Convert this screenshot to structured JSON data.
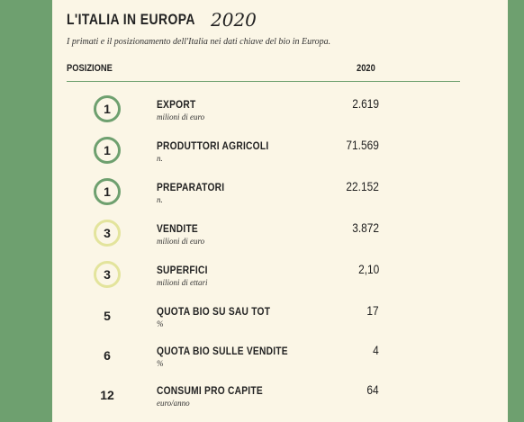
{
  "header": {
    "title": "L'ITALIA IN EUROPA",
    "year": "2020",
    "subtitle": "I primati e il posizionamento dell'Italia nei dati chiave del bio in Europa."
  },
  "columns": {
    "position": "POSIZIONE",
    "year": "2020"
  },
  "rows": [
    {
      "rank": "1",
      "label": "EXPORT",
      "unit": "milioni di euro",
      "value": "2.619",
      "ring": "green"
    },
    {
      "rank": "1",
      "label": "PRODUTTORI AGRICOLI",
      "unit": "n.",
      "value": "71.569",
      "ring": "green"
    },
    {
      "rank": "1",
      "label": "PREPARATORI",
      "unit": "n.",
      "value": "22.152",
      "ring": "green"
    },
    {
      "rank": "3",
      "label": "VENDITE",
      "unit": "milioni di euro",
      "value": "3.872",
      "ring": "yellow"
    },
    {
      "rank": "3",
      "label": "SUPERFICI",
      "unit": "milioni di ettari",
      "value": "2,10",
      "ring": "yellow"
    },
    {
      "rank": "5",
      "label": "QUOTA BIO SU SAU TOT",
      "unit": "%",
      "value": "17",
      "ring": "none"
    },
    {
      "rank": "6",
      "label": "QUOTA BIO SULLE VENDITE",
      "unit": "%",
      "value": "4",
      "ring": "none"
    },
    {
      "rank": "12",
      "label": "CONSUMI PRO CAPITE",
      "unit": "euro/anno",
      "value": "64",
      "ring": "none"
    }
  ],
  "colors": {
    "background": "#6ea06f",
    "card": "#fbf6e6",
    "ring_green": "#6ea06f",
    "ring_yellow": "#e3e49c"
  }
}
